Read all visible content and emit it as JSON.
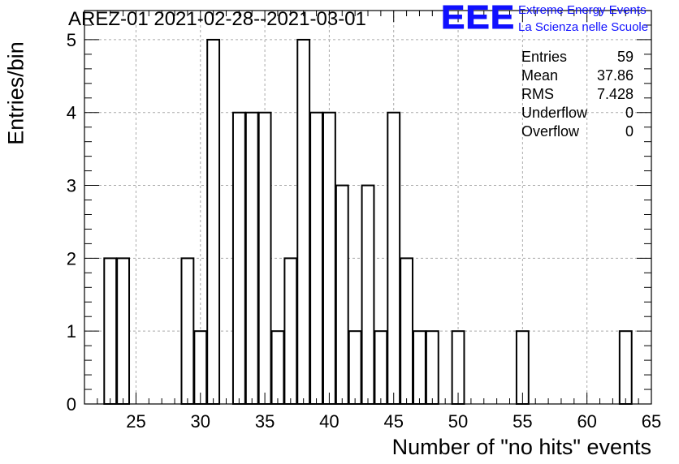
{
  "title": "AREZ-01 2021-02-28--2021-03-01",
  "logo": {
    "mark": "EEE",
    "line1": "Extreme Energy Events",
    "line2": "La Scienza nelle Scuole",
    "color": "#1010ff"
  },
  "stats": [
    {
      "label": "Entries",
      "value": "59"
    },
    {
      "label": "Mean",
      "value": "37.86"
    },
    {
      "label": "RMS",
      "value": "7.428"
    },
    {
      "label": "Underflow",
      "value": "0"
    },
    {
      "label": "Overflow",
      "value": "0"
    }
  ],
  "chart_data": {
    "type": "bar",
    "title": "AREZ-01 2021-02-28--2021-03-01",
    "xlabel": "Number of \"no hits\" events",
    "ylabel": "Entries/bin",
    "xlim": [
      21,
      65
    ],
    "ylim": [
      0,
      5.4
    ],
    "bin_width": 1,
    "x_ticks": [
      25,
      30,
      35,
      40,
      45,
      50,
      55,
      60,
      65
    ],
    "y_ticks": [
      0,
      1,
      2,
      3,
      4,
      5
    ],
    "grid": true,
    "legend": "top-right stats box",
    "bins": [
      {
        "x": 23,
        "count": 2
      },
      {
        "x": 24,
        "count": 2
      },
      {
        "x": 29,
        "count": 2
      },
      {
        "x": 30,
        "count": 1
      },
      {
        "x": 31,
        "count": 5
      },
      {
        "x": 33,
        "count": 4
      },
      {
        "x": 34,
        "count": 4
      },
      {
        "x": 35,
        "count": 4
      },
      {
        "x": 36,
        "count": 1
      },
      {
        "x": 37,
        "count": 2
      },
      {
        "x": 38,
        "count": 5
      },
      {
        "x": 39,
        "count": 4
      },
      {
        "x": 40,
        "count": 4
      },
      {
        "x": 41,
        "count": 3
      },
      {
        "x": 42,
        "count": 1
      },
      {
        "x": 43,
        "count": 3
      },
      {
        "x": 44,
        "count": 1
      },
      {
        "x": 45,
        "count": 4
      },
      {
        "x": 46,
        "count": 2
      },
      {
        "x": 47,
        "count": 1
      },
      {
        "x": 48,
        "count": 1
      },
      {
        "x": 50,
        "count": 1
      },
      {
        "x": 55,
        "count": 1
      },
      {
        "x": 63,
        "count": 1
      }
    ]
  }
}
